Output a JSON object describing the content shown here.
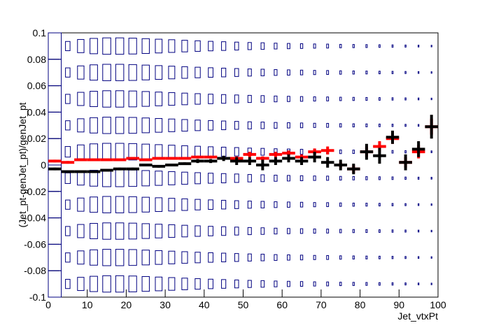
{
  "chart_data": {
    "type": "box",
    "x_label": "Jet_vtxPt",
    "y_label": "(Jet_pt-genJet_pt)/genJet_pt",
    "xlim": [
      0,
      100
    ],
    "xticks": [
      0,
      10,
      20,
      30,
      40,
      50,
      60,
      70,
      80,
      90,
      100
    ],
    "ylim": [
      -0.1,
      0.1
    ],
    "yticks": [
      -0.1,
      -0.08,
      -0.06,
      -0.04,
      -0.02,
      0,
      0.02,
      0.04,
      0.06,
      0.08,
      0.1
    ],
    "box_color": "#000080",
    "z": [
      [
        1.0,
        0.35,
        0.5,
        0.58,
        0.62,
        0.62,
        0.6,
        0.56,
        0.52,
        0.48,
        0.44,
        0.4,
        0.36,
        0.33,
        0.3,
        0.27,
        0.25,
        0.22,
        0.2,
        0.18,
        0.16,
        0.15,
        0.13,
        0.12,
        0.11,
        0.1,
        0.09,
        0.08,
        0.07,
        0.06
      ],
      [
        1.0,
        0.35,
        0.5,
        0.58,
        0.62,
        0.62,
        0.6,
        0.56,
        0.52,
        0.48,
        0.44,
        0.4,
        0.36,
        0.33,
        0.3,
        0.27,
        0.25,
        0.22,
        0.2,
        0.18,
        0.16,
        0.15,
        0.13,
        0.12,
        0.11,
        0.1,
        0.09,
        0.08,
        0.07,
        0.06
      ],
      [
        1.0,
        0.35,
        0.5,
        0.58,
        0.62,
        0.62,
        0.6,
        0.56,
        0.52,
        0.48,
        0.44,
        0.4,
        0.36,
        0.33,
        0.3,
        0.27,
        0.25,
        0.22,
        0.2,
        0.18,
        0.16,
        0.15,
        0.13,
        0.12,
        0.11,
        0.1,
        0.09,
        0.08,
        0.07,
        0.06
      ],
      [
        1.0,
        0.35,
        0.5,
        0.58,
        0.62,
        0.62,
        0.6,
        0.56,
        0.52,
        0.48,
        0.44,
        0.4,
        0.36,
        0.33,
        0.3,
        0.27,
        0.25,
        0.22,
        0.2,
        0.18,
        0.16,
        0.15,
        0.13,
        0.12,
        0.11,
        0.1,
        0.09,
        0.08,
        0.07,
        0.06
      ],
      [
        1.0,
        0.4,
        0.52,
        0.6,
        0.64,
        0.64,
        0.62,
        0.58,
        0.54,
        0.5,
        0.46,
        0.42,
        0.38,
        0.35,
        0.32,
        0.28,
        0.26,
        0.23,
        0.21,
        0.19,
        0.17,
        0.16,
        0.14,
        0.13,
        0.12,
        0.11,
        0.1,
        0.09,
        0.08,
        0.07
      ],
      [
        1.0,
        0.4,
        0.52,
        0.6,
        0.64,
        0.64,
        0.62,
        0.58,
        0.54,
        0.5,
        0.46,
        0.42,
        0.38,
        0.35,
        0.32,
        0.28,
        0.26,
        0.23,
        0.21,
        0.19,
        0.17,
        0.16,
        0.14,
        0.13,
        0.12,
        0.11,
        0.1,
        0.09,
        0.08,
        0.07
      ],
      [
        1.0,
        0.35,
        0.5,
        0.58,
        0.62,
        0.62,
        0.6,
        0.56,
        0.52,
        0.48,
        0.44,
        0.4,
        0.36,
        0.33,
        0.3,
        0.27,
        0.25,
        0.22,
        0.2,
        0.18,
        0.16,
        0.15,
        0.13,
        0.12,
        0.11,
        0.1,
        0.09,
        0.08,
        0.07,
        0.06
      ],
      [
        1.0,
        0.35,
        0.5,
        0.58,
        0.62,
        0.62,
        0.6,
        0.56,
        0.52,
        0.48,
        0.44,
        0.4,
        0.36,
        0.33,
        0.3,
        0.27,
        0.25,
        0.22,
        0.2,
        0.18,
        0.16,
        0.15,
        0.13,
        0.12,
        0.11,
        0.1,
        0.09,
        0.08,
        0.07,
        0.06
      ],
      [
        1.0,
        0.35,
        0.5,
        0.58,
        0.62,
        0.62,
        0.6,
        0.56,
        0.52,
        0.48,
        0.44,
        0.4,
        0.36,
        0.33,
        0.3,
        0.27,
        0.25,
        0.22,
        0.2,
        0.18,
        0.16,
        0.15,
        0.13,
        0.12,
        0.11,
        0.1,
        0.09,
        0.08,
        0.07,
        0.06
      ],
      [
        1.0,
        0.35,
        0.5,
        0.58,
        0.62,
        0.62,
        0.6,
        0.56,
        0.52,
        0.48,
        0.44,
        0.4,
        0.36,
        0.33,
        0.3,
        0.27,
        0.25,
        0.22,
        0.2,
        0.18,
        0.16,
        0.15,
        0.13,
        0.12,
        0.11,
        0.1,
        0.09,
        0.08,
        0.07,
        0.06
      ]
    ],
    "x": [
      1.67,
      5,
      8.33,
      11.67,
      15,
      18.33,
      21.67,
      25,
      28.33,
      31.67,
      35,
      38.33,
      41.67,
      45,
      48.33,
      51.67,
      55,
      58.33,
      61.67,
      65,
      68.33,
      71.67,
      75,
      78.33,
      81.67,
      85,
      88.33,
      91.67,
      95,
      98.33
    ],
    "series": [
      {
        "color": "#ff0000",
        "values": [
          0.003,
          0.002,
          0.004,
          0.004,
          0.004,
          0.004,
          0.005,
          0.004,
          0.005,
          0.005,
          0.005,
          0.006,
          0.006,
          0.005,
          0.005,
          0.008,
          0.005,
          0.008,
          0.009,
          0.006,
          0.01,
          0.011,
          0,
          -0.003,
          0.01,
          0.014,
          0.02,
          0.002,
          0.01,
          0.029
        ],
        "errors": [
          0.001,
          0.001,
          0.001,
          0.001,
          0.001,
          0.001,
          0.001,
          0.001,
          0.001,
          0.001,
          0.001,
          0.001,
          0.001,
          0.001,
          0.0015,
          0.002,
          0.0015,
          0.002,
          0.002,
          0.002,
          0.0025,
          0.003,
          0.002,
          0.003,
          0.004,
          0.004,
          0.004,
          0.004,
          0.005,
          0.006
        ]
      },
      {
        "color": "#000000",
        "values": [
          -0.003,
          -0.005,
          -0.005,
          -0.005,
          -0.004,
          -0.003,
          -0.003,
          0,
          -0.001,
          0,
          0.001,
          0.003,
          0.003,
          0.005,
          0.003,
          0.003,
          0,
          0.003,
          0.005,
          0.003,
          0.006,
          0.002,
          0,
          -0.003,
          0.01,
          0.007,
          0.021,
          0.002,
          0.012,
          0.029
        ],
        "errors": [
          0.001,
          0.001,
          0.001,
          0.001,
          0.001,
          0.001,
          0.001,
          0.001,
          0.001,
          0.001,
          0.001,
          0.0015,
          0.0015,
          0.002,
          0.003,
          0.003,
          0.004,
          0.003,
          0.003,
          0.003,
          0.004,
          0.004,
          0.004,
          0.004,
          0.006,
          0.006,
          0.005,
          0.006,
          0.006,
          0.009
        ]
      }
    ]
  }
}
